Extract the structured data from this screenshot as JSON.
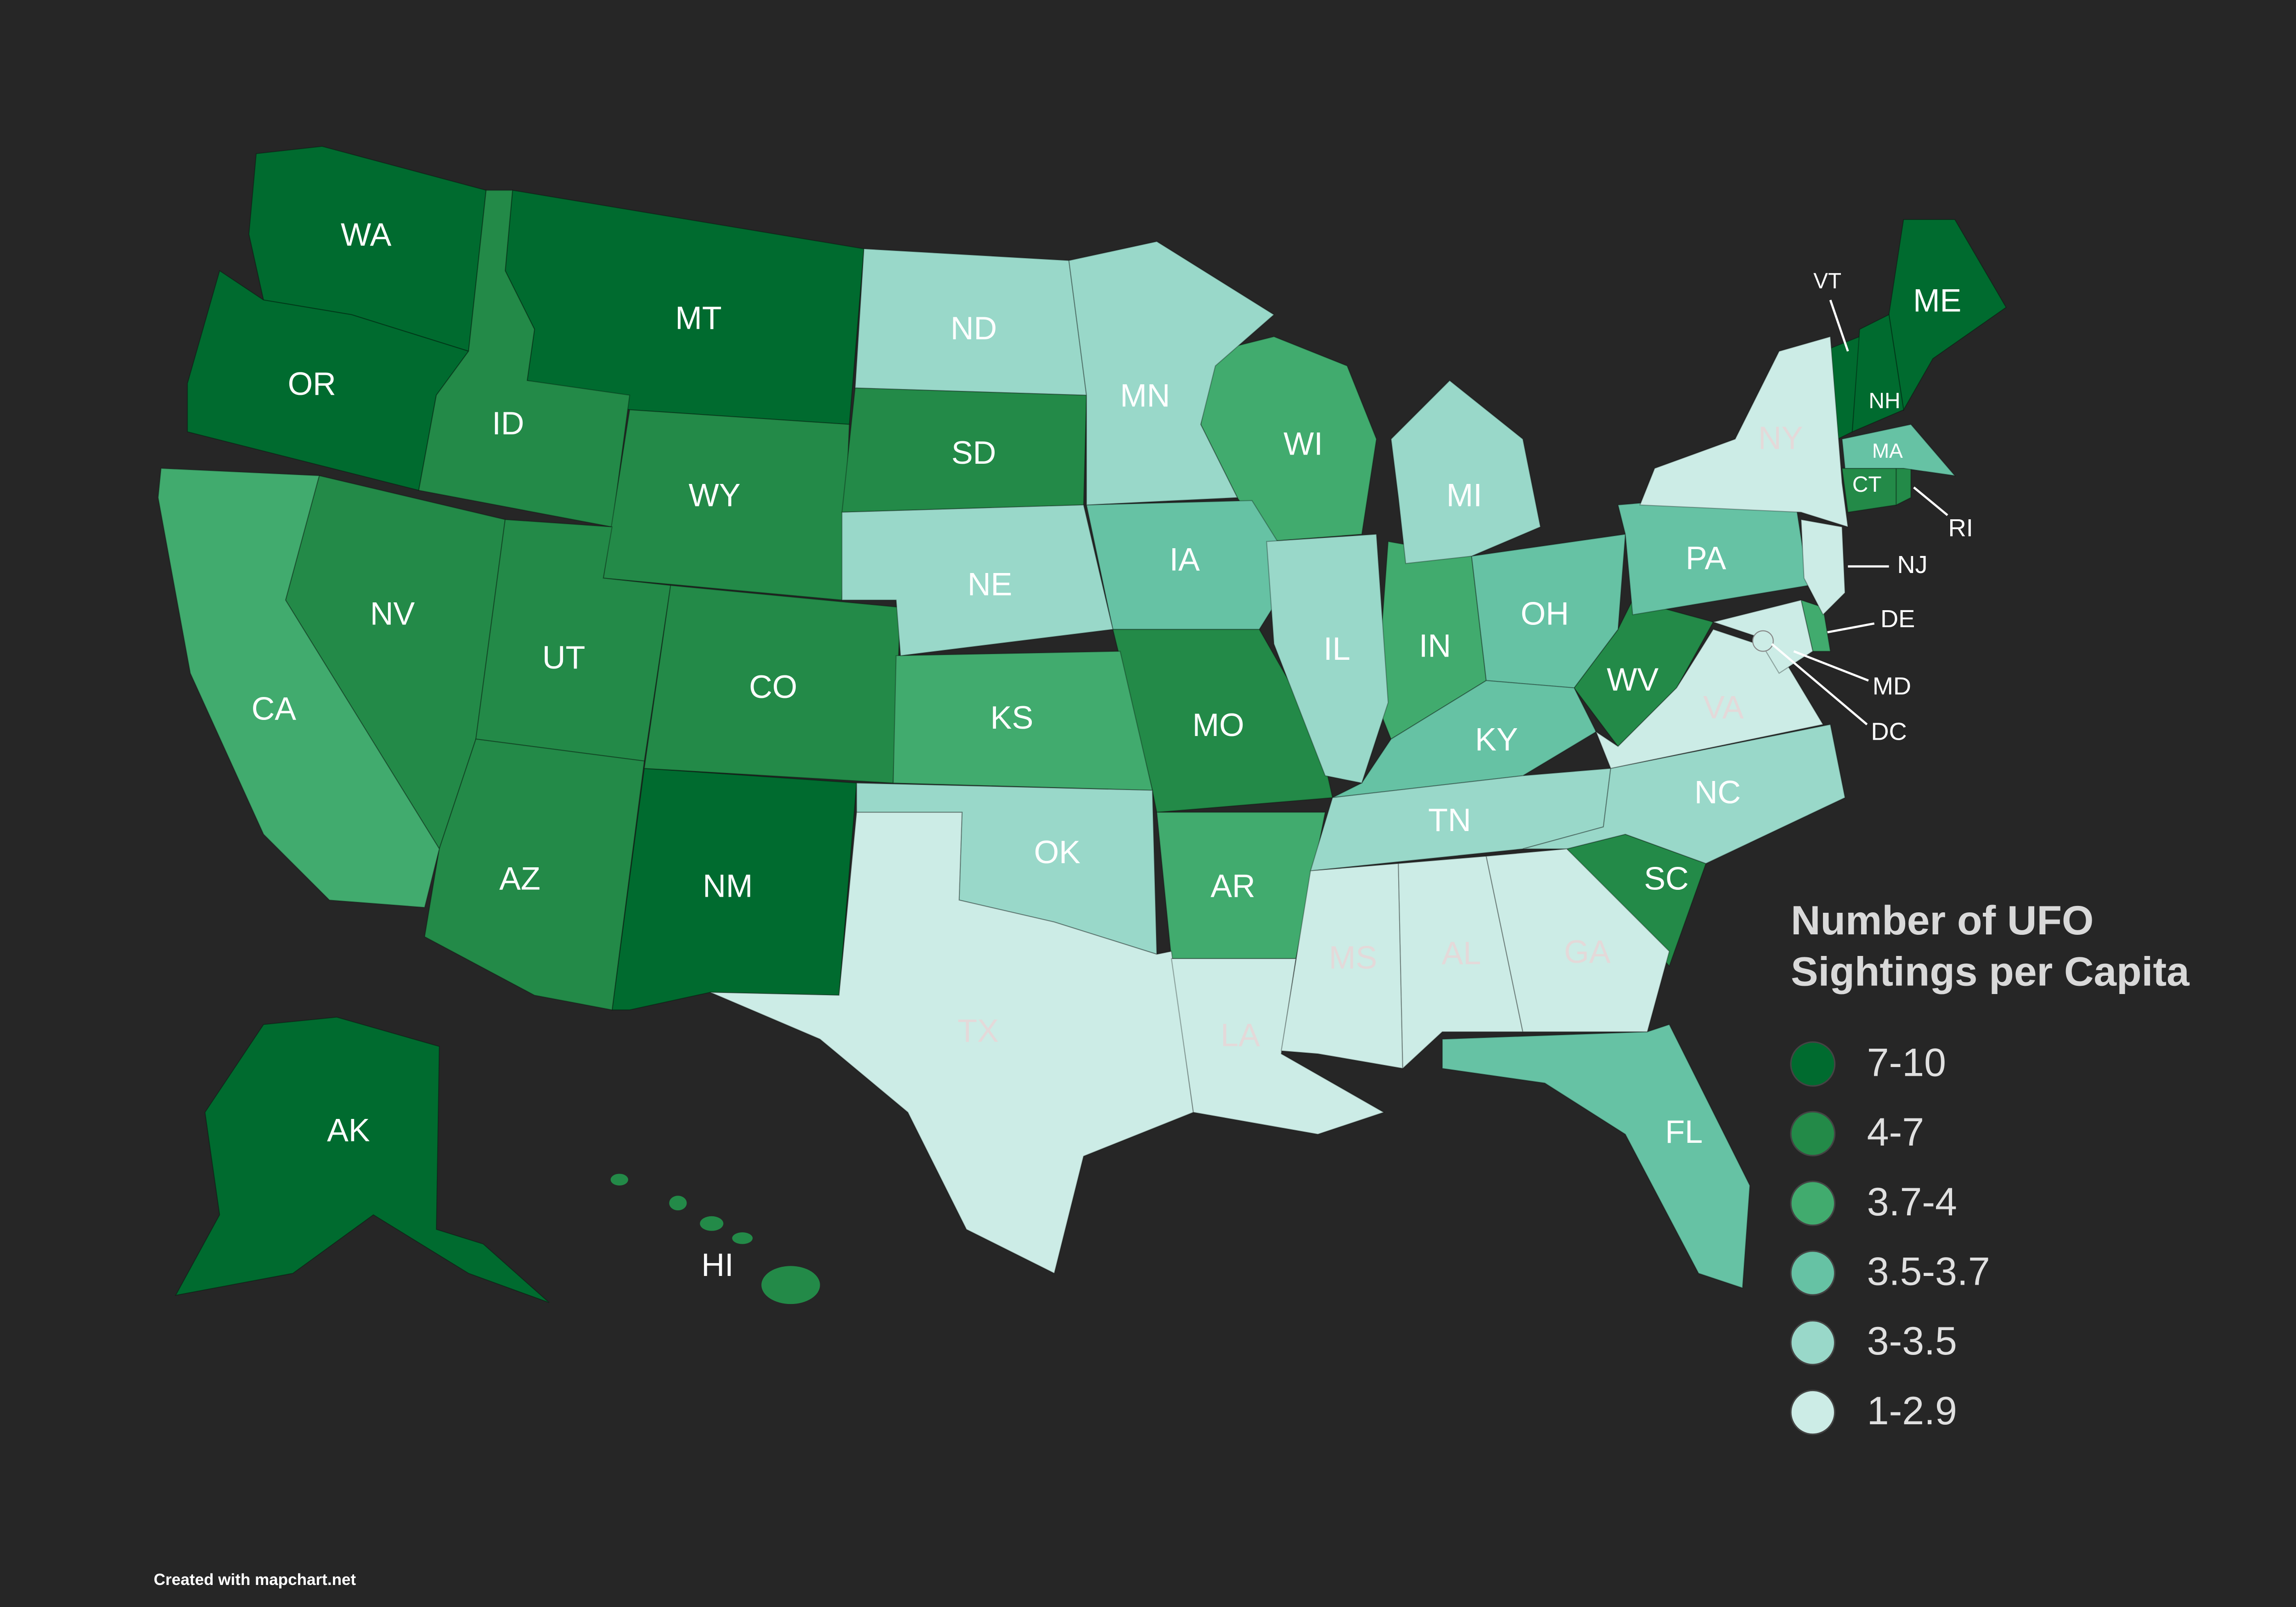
{
  "map": {
    "legend": {
      "title_lines": [
        "Number of UFO",
        "Sightings per Capita"
      ],
      "items": [
        {
          "label": "7-10",
          "color": "#006b2f"
        },
        {
          "label": "4-7",
          "color": "#238a48"
        },
        {
          "label": "3.7-4",
          "color": "#41ab6e"
        },
        {
          "label": "3.5-3.7",
          "color": "#66c2a4"
        },
        {
          "label": "3-3.5",
          "color": "#99d8c9"
        },
        {
          "label": "1-2.9",
          "color": "#ccece6"
        }
      ]
    },
    "states": [
      {
        "label": "WA",
        "color": "#006b2f"
      },
      {
        "label": "OR",
        "color": "#006b2f"
      },
      {
        "label": "MT",
        "color": "#006b2f"
      },
      {
        "label": "NM",
        "color": "#006b2f"
      },
      {
        "label": "AK",
        "color": "#006b2f"
      },
      {
        "label": "ME",
        "color": "#006b2f"
      },
      {
        "label": "VT",
        "color": "#006b2f"
      },
      {
        "label": "NH",
        "color": "#006b2f"
      },
      {
        "label": "ID",
        "color": "#238a48"
      },
      {
        "label": "WY",
        "color": "#238a48"
      },
      {
        "label": "NV",
        "color": "#238a48"
      },
      {
        "label": "UT",
        "color": "#238a48"
      },
      {
        "label": "CO",
        "color": "#238a48"
      },
      {
        "label": "AZ",
        "color": "#238a48"
      },
      {
        "label": "SD",
        "color": "#238a48"
      },
      {
        "label": "MO",
        "color": "#238a48"
      },
      {
        "label": "WV",
        "color": "#238a48"
      },
      {
        "label": "SC",
        "color": "#238a48"
      },
      {
        "label": "HI",
        "color": "#238a48"
      },
      {
        "label": "CT",
        "color": "#238a48"
      },
      {
        "label": "RI",
        "color": "#238a48"
      },
      {
        "label": "CA",
        "color": "#41ab6e"
      },
      {
        "label": "KS",
        "color": "#41ab6e"
      },
      {
        "label": "WI",
        "color": "#41ab6e"
      },
      {
        "label": "IN",
        "color": "#41ab6e"
      },
      {
        "label": "AR",
        "color": "#41ab6e"
      },
      {
        "label": "DE",
        "color": "#41ab6e"
      },
      {
        "label": "IA",
        "color": "#66c2a4"
      },
      {
        "label": "OH",
        "color": "#66c2a4"
      },
      {
        "label": "KY",
        "color": "#66c2a4"
      },
      {
        "label": "FL",
        "color": "#66c2a4"
      },
      {
        "label": "PA",
        "color": "#66c2a4"
      },
      {
        "label": "MA",
        "color": "#66c2a4"
      },
      {
        "label": "ND",
        "color": "#99d8c9"
      },
      {
        "label": "MN",
        "color": "#99d8c9"
      },
      {
        "label": "NE",
        "color": "#99d8c9"
      },
      {
        "label": "MI",
        "color": "#99d8c9"
      },
      {
        "label": "IL",
        "color": "#99d8c9"
      },
      {
        "label": "OK",
        "color": "#99d8c9"
      },
      {
        "label": "TN",
        "color": "#99d8c9"
      },
      {
        "label": "NC",
        "color": "#99d8c9"
      },
      {
        "label": "TX",
        "color": "#ccece6"
      },
      {
        "label": "LA",
        "color": "#ccece6"
      },
      {
        "label": "MS",
        "color": "#ccece6"
      },
      {
        "label": "AL",
        "color": "#ccece6"
      },
      {
        "label": "GA",
        "color": "#ccece6"
      },
      {
        "label": "VA",
        "color": "#ccece6"
      },
      {
        "label": "NY",
        "color": "#ccece6"
      },
      {
        "label": "NJ",
        "color": "#ccece6"
      },
      {
        "label": "MD",
        "color": "#ccece6"
      },
      {
        "label": "DC",
        "color": "#ccece6"
      }
    ],
    "credit": "Created with mapchart.net"
  }
}
